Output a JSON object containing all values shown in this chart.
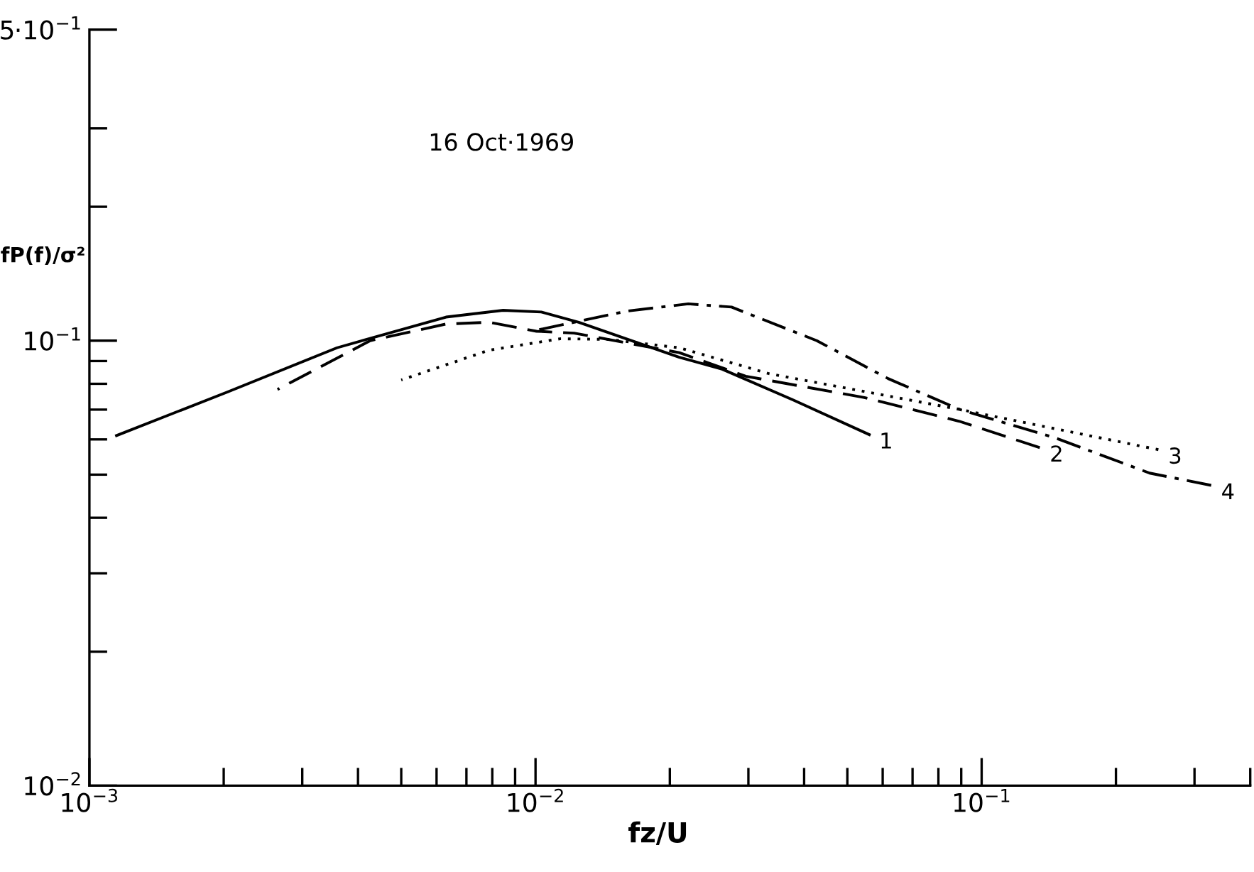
{
  "chart_data": {
    "type": "line",
    "xlabel": "fz/U",
    "ylabel": "fP(f)/σ²",
    "annotations": [
      "16 Oct·1969"
    ],
    "log": "xy",
    "grid": false,
    "legend": false,
    "xlim": [
      0.001,
      0.4
    ],
    "ylim": [
      0.01,
      0.5
    ],
    "xticks": [
      {
        "value": 0.001,
        "label": "10$^{−3}$"
      },
      {
        "value": 0.002,
        "label": null
      },
      {
        "value": 0.003,
        "label": null
      },
      {
        "value": 0.004,
        "label": null
      },
      {
        "value": 0.005,
        "label": null
      },
      {
        "value": 0.006,
        "label": null
      },
      {
        "value": 0.007,
        "label": null
      },
      {
        "value": 0.008,
        "label": null
      },
      {
        "value": 0.009,
        "label": null
      },
      {
        "value": 0.01,
        "label": "10$^{−2}$"
      },
      {
        "value": 0.02,
        "label": null
      },
      {
        "value": 0.03,
        "label": null
      },
      {
        "value": 0.04,
        "label": null
      },
      {
        "value": 0.05,
        "label": null
      },
      {
        "value": 0.06,
        "label": null
      },
      {
        "value": 0.07,
        "label": null
      },
      {
        "value": 0.08,
        "label": null
      },
      {
        "value": 0.09,
        "label": null
      },
      {
        "value": 0.1,
        "label": "10$^{−1}$"
      },
      {
        "value": 0.2,
        "label": null
      },
      {
        "value": 0.3,
        "label": null
      },
      {
        "value": 0.4,
        "label": null
      }
    ],
    "yticks": [
      {
        "value": 0.01,
        "label": "10$^{−2}$"
      },
      {
        "value": 0.02,
        "label": null
      },
      {
        "value": 0.03,
        "label": null
      },
      {
        "value": 0.04,
        "label": null
      },
      {
        "value": 0.05,
        "label": null
      },
      {
        "value": 0.06,
        "label": null
      },
      {
        "value": 0.07,
        "label": null
      },
      {
        "value": 0.08,
        "label": null
      },
      {
        "value": 0.09,
        "label": null
      },
      {
        "value": 0.1,
        "label": "10$^{−1}$"
      },
      {
        "value": 0.2,
        "label": null
      },
      {
        "value": 0.3,
        "label": null
      },
      {
        "value": 0.5,
        "label": "5·10$^{−1}$"
      }
    ],
    "series": [
      {
        "name": "1",
        "color": "#000000",
        "line_style": "solid",
        "x": [
          0.00115,
          0.00204,
          0.00359,
          0.0063,
          0.00846,
          0.0103,
          0.0125,
          0.021,
          0.0262,
          0.0378,
          0.056
        ],
        "values": [
          0.0612,
          0.0767,
          0.0964,
          0.113,
          0.117,
          0.116,
          0.11,
          0.0918,
          0.0863,
          0.0736,
          0.0615
        ]
      },
      {
        "name": "2",
        "color": "#000000",
        "line_style": "dashed",
        "x": [
          0.00264,
          0.00426,
          0.0063,
          0.00787,
          0.01005,
          0.0122,
          0.021,
          0.0296,
          0.0546,
          0.0891,
          0.135
        ],
        "values": [
          0.0777,
          0.1,
          0.109,
          0.11,
          0.105,
          0.104,
          0.094,
          0.0832,
          0.0745,
          0.0659,
          0.0575
        ]
      },
      {
        "name": "3",
        "color": "#000000",
        "line_style": "dotted",
        "x": [
          0.005,
          0.00787,
          0.01136,
          0.0145,
          0.021,
          0.0334,
          0.0891,
          0.249
        ],
        "values": [
          0.0816,
          0.0952,
          0.101,
          0.1007,
          0.0964,
          0.0843,
          0.0701,
          0.0569
        ]
      },
      {
        "name": "4",
        "color": "#000000",
        "line_style": "dashdot",
        "x": [
          0.0098,
          0.016,
          0.022,
          0.0275,
          0.0427,
          0.0617,
          0.0891,
          0.146,
          0.238,
          0.327
        ],
        "values": [
          0.105,
          0.1165,
          0.121,
          0.119,
          0.1,
          0.0822,
          0.0701,
          0.0605,
          0.0504,
          0.0473
        ]
      }
    ]
  }
}
